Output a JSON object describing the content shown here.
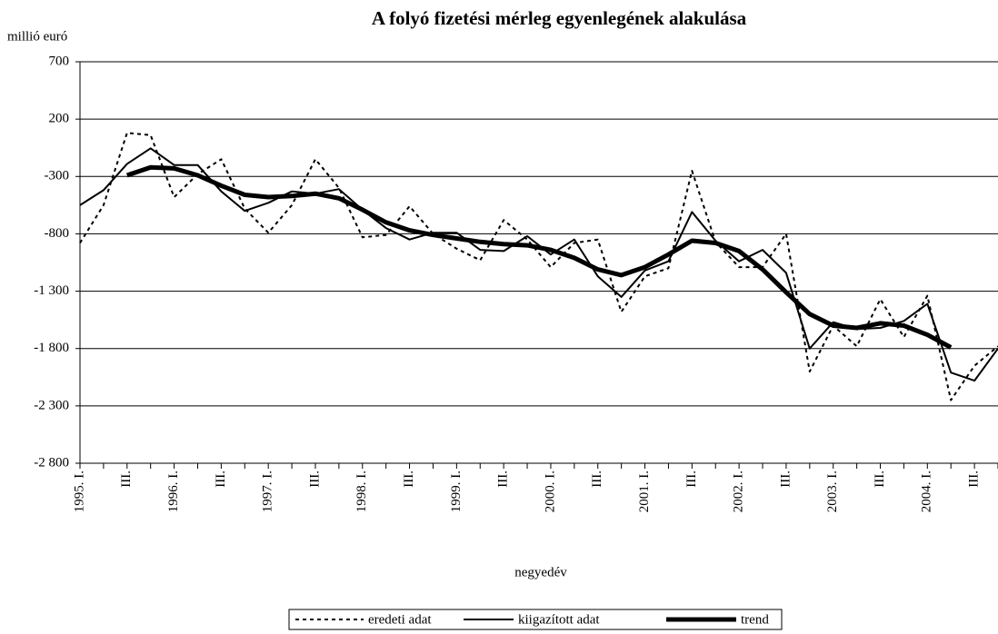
{
  "chart_data": {
    "type": "line",
    "title": "A folyó fizetési mérleg egyenlegének alakulása",
    "y_label": "millió euró",
    "x_label": "negyedév",
    "categories": [
      "1995. I.",
      null,
      "III.",
      null,
      "1996. I.",
      null,
      "III.",
      null,
      "1997. I.",
      null,
      "III.",
      null,
      "1998. I.",
      null,
      "III.",
      null,
      "1999. I.",
      null,
      "III.",
      null,
      "2000. I.",
      null,
      "III.",
      null,
      "2001. I.",
      null,
      "III.",
      null,
      "2002. I.",
      null,
      "III.",
      null,
      "2003. I.",
      null,
      "III.",
      null,
      "2004. I.",
      null,
      "III.",
      null
    ],
    "series": [
      {
        "name": "eredeti adat",
        "color": "#000000",
        "style": "dashed",
        "width": 2,
        "values": [
          -880,
          -550,
          80,
          60,
          -480,
          -280,
          -150,
          -580,
          -790,
          -550,
          -150,
          -400,
          -830,
          -810,
          -560,
          -800,
          -930,
          -1030,
          -680,
          -850,
          -1090,
          -880,
          -850,
          -1480,
          -1170,
          -1100,
          -250,
          -870,
          -1090,
          -1090,
          -800,
          -2000,
          -1600,
          -1780,
          -1370,
          -1700,
          -1340,
          -2250,
          -1950,
          -1780
        ]
      },
      {
        "name": "kiigazított adat",
        "color": "#000000",
        "style": "solid",
        "width": 2,
        "values": [
          -550,
          -420,
          -190,
          -55,
          -200,
          -200,
          -430,
          -600,
          -530,
          -430,
          -450,
          -410,
          -590,
          -750,
          -850,
          -790,
          -790,
          -940,
          -950,
          -820,
          -980,
          -850,
          -1170,
          -1350,
          -1120,
          -1040,
          -610,
          -860,
          -1040,
          -940,
          -1140,
          -1800,
          -1570,
          -1630,
          -1620,
          -1560,
          -1410,
          -2010,
          -2080,
          -1800
        ]
      },
      {
        "name": "trend",
        "color": "#000000",
        "style": "solid",
        "width": 5,
        "values": [
          null,
          null,
          -290,
          -220,
          -230,
          -290,
          -380,
          -460,
          -480,
          -470,
          -450,
          -490,
          -590,
          -700,
          -770,
          -810,
          -840,
          -870,
          -890,
          -900,
          -940,
          -1010,
          -1110,
          -1160,
          -1090,
          -980,
          -860,
          -880,
          -950,
          -1110,
          -1310,
          -1500,
          -1600,
          -1620,
          -1580,
          -1600,
          -1680,
          -1790,
          null,
          null
        ]
      }
    ],
    "ylim": [
      -2800,
      700
    ],
    "yticks": [
      {
        "value": -2800,
        "label": "-2 800"
      },
      {
        "value": -2300,
        "label": "-2 300"
      },
      {
        "value": -1800,
        "label": "-1 800"
      },
      {
        "value": -1300,
        "label": "-1 300"
      },
      -800,
      -300,
      200,
      700
    ],
    "grid": true,
    "legend": "bottom"
  }
}
